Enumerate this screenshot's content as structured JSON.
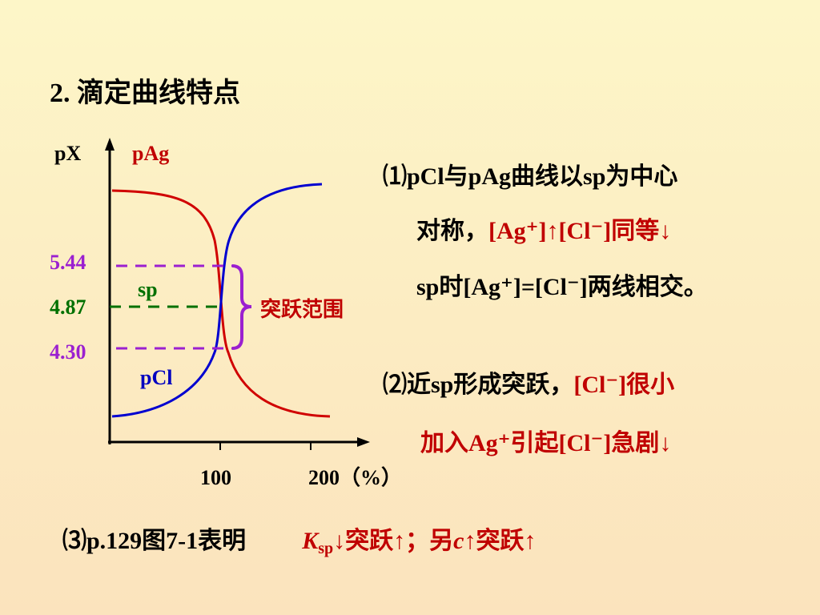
{
  "header": {
    "title": "2. 滴定曲线特点"
  },
  "figure": {
    "y_axis_label": "pX",
    "pag_label": "pAg",
    "sp_label": "sp",
    "pcl_label": "pCl",
    "y_labels": [
      "5.44",
      "4.87",
      "4.30"
    ],
    "x_labels": [
      "100",
      "200（%）"
    ],
    "range_label": "突跃范围"
  },
  "points": [
    {
      "lines": [
        [
          "⑴pCl与pAg曲线以sp为中心"
        ],
        [
          "对称，",
          "[Ag⁺]↑[Cl⁻]同等↓"
        ],
        [
          "sp时[Ag⁺]=[Cl⁻]两线相交。"
        ]
      ]
    },
    {
      "lines": [
        [
          "⑵近sp形成突跃，",
          "[Cl⁻]很小"
        ],
        [
          "加入Ag⁺引起[Cl⁻]急剧↓"
        ]
      ]
    },
    {
      "lines": [
        [
          "⑶p.129图7-1表明",
          "K",
          "sp",
          "↓突跃↑；另",
          "c",
          "↑突跃↑"
        ]
      ]
    }
  ]
}
